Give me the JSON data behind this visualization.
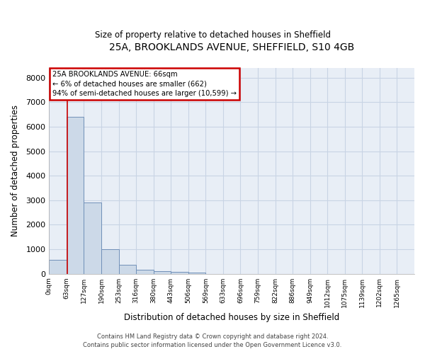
{
  "title": "25A, BROOKLANDS AVENUE, SHEFFIELD, S10 4GB",
  "subtitle": "Size of property relative to detached houses in Sheffield",
  "xlabel": "Distribution of detached houses by size in Sheffield",
  "ylabel": "Number of detached properties",
  "bar_color": "#ccd9e8",
  "bar_edge_color": "#7090b8",
  "bar_categories": [
    "0sqm",
    "63sqm",
    "127sqm",
    "190sqm",
    "253sqm",
    "316sqm",
    "380sqm",
    "443sqm",
    "506sqm",
    "569sqm",
    "633sqm",
    "696sqm",
    "759sqm",
    "822sqm",
    "886sqm",
    "949sqm",
    "1012sqm",
    "1075sqm",
    "1139sqm",
    "1202sqm",
    "1265sqm"
  ],
  "bar_values": [
    570,
    6400,
    2900,
    1000,
    380,
    170,
    120,
    80,
    50,
    0,
    0,
    0,
    0,
    0,
    0,
    0,
    0,
    0,
    0,
    0,
    0
  ],
  "ylim": [
    0,
    8400
  ],
  "yticks": [
    0,
    1000,
    2000,
    3000,
    4000,
    5000,
    6000,
    7000,
    8000
  ],
  "red_line_x": 1.06,
  "annotation_text": "25A BROOKLANDS AVENUE: 66sqm\n← 6% of detached houses are smaller (662)\n94% of semi-detached houses are larger (10,599) →",
  "annotation_box_color": "#cc0000",
  "footer_line1": "Contains HM Land Registry data © Crown copyright and database right 2024.",
  "footer_line2": "Contains public sector information licensed under the Open Government Licence v3.0.",
  "grid_color": "#c8d4e4",
  "plot_bg_color": "#e8eef6",
  "bar_width": 1.0,
  "fig_width": 6.0,
  "fig_height": 5.0
}
